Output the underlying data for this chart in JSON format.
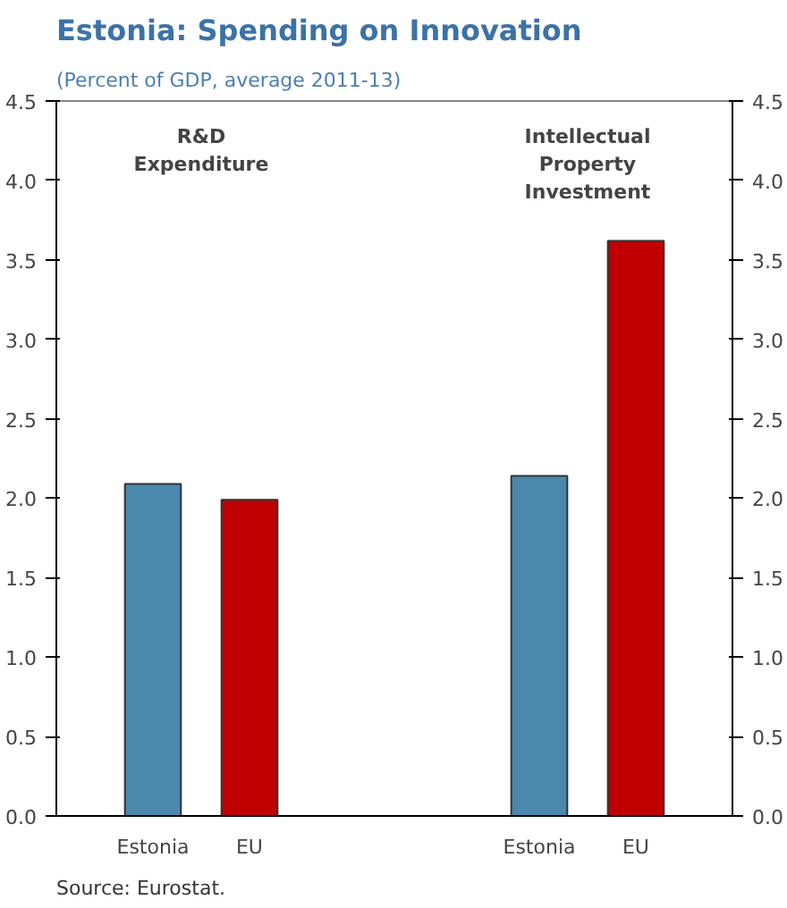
{
  "chart_data": {
    "type": "bar",
    "title": "Estonia: Spending on Innovation",
    "subtitle": "(Percent of GDP, average 2011-13)",
    "categories": [
      "Estonia",
      "EU",
      null,
      null,
      "Estonia",
      "EU"
    ],
    "values": [
      2.09,
      1.99,
      null,
      null,
      2.14,
      3.62
    ],
    "colors": [
      "#4a89ad",
      "#c00000",
      null,
      null,
      "#4a89ad",
      "#c00000"
    ],
    "ylim": [
      0,
      4.5
    ],
    "yticks": [
      {
        "value": 0,
        "label": "0.0"
      },
      {
        "value": 0.5,
        "label": "0.5"
      },
      {
        "value": 1,
        "label": "1.0"
      },
      {
        "value": 1.5,
        "label": "1.5"
      },
      {
        "value": 2,
        "label": "2.0"
      },
      {
        "value": 2.5,
        "label": "2.5"
      },
      {
        "value": 3,
        "label": "3.0"
      },
      {
        "value": 3.5,
        "label": "3.5"
      },
      {
        "value": 4,
        "label": "4.0"
      },
      {
        "value": 4.5,
        "label": "4.5"
      }
    ],
    "y2lim": [
      0,
      4.5
    ],
    "y2ticks": [
      {
        "value": 0,
        "label": "0.0"
      },
      {
        "value": 0.5,
        "label": "0.5"
      },
      {
        "value": 1,
        "label": "1.0"
      },
      {
        "value": 1.5,
        "label": "1.5"
      },
      {
        "value": 2,
        "label": "2.0"
      },
      {
        "value": 2.5,
        "label": "2.5"
      },
      {
        "value": 3,
        "label": "3.0"
      },
      {
        "value": 3.5,
        "label": "3.5"
      },
      {
        "value": 4,
        "label": "4.0"
      },
      {
        "value": 4.5,
        "label": "4.5"
      }
    ],
    "annotations": [
      "R&D\nExpenditure",
      "Intellectual\nProperty\nInvestment",
      "Source: Eurostat."
    ],
    "grid": false
  }
}
